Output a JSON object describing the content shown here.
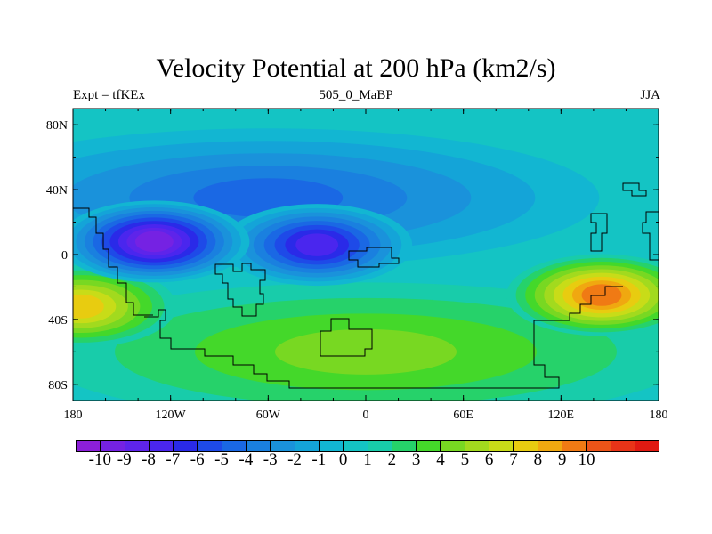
{
  "title": "Velocity Potential at 200 hPa (km2/s)",
  "subtitle_left": "Expt = tfKEx",
  "subtitle_center": "505_0_MaBP",
  "subtitle_right": "JJA",
  "chart_data": {
    "type": "heatmap",
    "projection": "cylindrical-equidistant",
    "lon_range": [
      -180,
      180
    ],
    "lat_range": [
      -90,
      90
    ],
    "x_ticks": [
      {
        "value": -180,
        "label": "180"
      },
      {
        "value": -120,
        "label": "120W"
      },
      {
        "value": -60,
        "label": "60W"
      },
      {
        "value": 0,
        "label": "0"
      },
      {
        "value": 60,
        "label": "60E"
      },
      {
        "value": 120,
        "label": "120E"
      },
      {
        "value": 180,
        "label": "180"
      }
    ],
    "y_ticks": [
      {
        "value": 80,
        "label": "80N"
      },
      {
        "value": 40,
        "label": "40N"
      },
      {
        "value": 0,
        "label": "0"
      },
      {
        "value": -40,
        "label": "40S"
      },
      {
        "value": -80,
        "label": "80S"
      }
    ],
    "background_value": 0.8,
    "features": [
      {
        "name": "minimum over central Pacific",
        "lon": -130,
        "lat": 8,
        "value": -9.5
      },
      {
        "name": "minimum over Atlantic",
        "lon": -30,
        "lat": 6,
        "value": -8.0
      },
      {
        "name": "negative band northern hemisphere",
        "lon": -60,
        "lat": 35,
        "value": -4.5
      },
      {
        "name": "maximum over western Pacific",
        "lon": 145,
        "lat": -25,
        "value": 9.0
      },
      {
        "name": "maximum over South Pacific",
        "lon": -175,
        "lat": -32,
        "value": 7.0
      },
      {
        "name": "positive band southern hemisphere",
        "lon": 0,
        "lat": -60,
        "value": 4.0
      }
    ],
    "colorbar": {
      "levels": [
        -10,
        -9,
        -8,
        -7,
        -6,
        -5,
        -4,
        -3,
        -2,
        -1,
        0,
        1,
        2,
        3,
        4,
        5,
        6,
        7,
        8,
        9,
        10
      ],
      "labels": [
        "-10",
        "-9",
        "-8",
        "-7",
        "-6",
        "-5",
        "-4",
        "-3",
        "-2",
        "-1",
        "0",
        "1",
        "2",
        "3",
        "4",
        "5",
        "6",
        "7",
        "8",
        "9",
        "10"
      ],
      "colors": [
        "#8c1fd9",
        "#7522e3",
        "#5e24ea",
        "#4a26ee",
        "#2a2ae8",
        "#1e4ae8",
        "#1a68e4",
        "#1a80df",
        "#1a92db",
        "#14a4d8",
        "#12b6d2",
        "#14c4c4",
        "#18ccaa",
        "#26d26a",
        "#44d82a",
        "#78d822",
        "#a2da1e",
        "#c8dc18",
        "#e8cc10",
        "#f0a810",
        "#f07a14",
        "#ec5418",
        "#e83418",
        "#e01a12"
      ]
    }
  }
}
